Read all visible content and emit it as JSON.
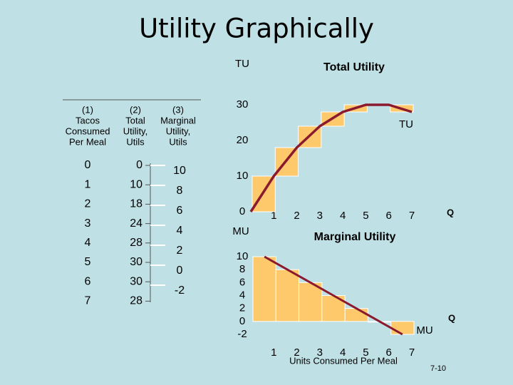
{
  "title": "Utility Graphically",
  "table": {
    "headers": [
      [
        "(1)",
        "Tacos",
        "Consumed",
        "Per Meal"
      ],
      [
        "(2)",
        "Total",
        "Utility,",
        "Utils"
      ],
      [
        "(3)",
        "Marginal",
        "Utility,",
        "Utils"
      ]
    ],
    "rows": [
      [
        0,
        0
      ],
      [
        1,
        10
      ],
      [
        2,
        18
      ],
      [
        3,
        24
      ],
      [
        4,
        28
      ],
      [
        5,
        30
      ],
      [
        6,
        30
      ],
      [
        7,
        28
      ]
    ],
    "marginal": [
      10,
      8,
      6,
      4,
      2,
      0,
      -2
    ]
  },
  "chart_data": [
    {
      "type": "line",
      "title": "Total Utility",
      "y_label": "TU",
      "x_label": "Q",
      "annotation": "TU",
      "x": [
        0,
        1,
        2,
        3,
        4,
        5,
        6,
        7
      ],
      "values": [
        0,
        10,
        18,
        24,
        28,
        30,
        30,
        28
      ],
      "color": "#8b1a2e",
      "bar_color": "#fdc96b",
      "xlim": [
        0,
        7
      ],
      "xticks": [
        1,
        2,
        3,
        4,
        5,
        6,
        7
      ],
      "ylim": [
        0,
        30
      ],
      "yticks": [
        0,
        10,
        20,
        30
      ]
    },
    {
      "type": "bar",
      "title": "Marginal Utility",
      "y_label": "MU",
      "x_label": "Units Consumed Per Meal",
      "axis_end_label": "Q",
      "annotation": "MU",
      "x": [
        1,
        2,
        3,
        4,
        5,
        6,
        7
      ],
      "values": [
        10,
        8,
        6,
        4,
        2,
        0,
        -2
      ],
      "color": "#fdc96b",
      "line_color": "#8b1a2e",
      "xlim": [
        0,
        7
      ],
      "xticks": [
        1,
        2,
        3,
        4,
        5,
        6,
        7
      ],
      "ylim": [
        -2,
        10
      ],
      "yticks": [
        -2,
        0,
        2,
        4,
        6,
        8,
        10
      ]
    }
  ],
  "footer": "7-10"
}
